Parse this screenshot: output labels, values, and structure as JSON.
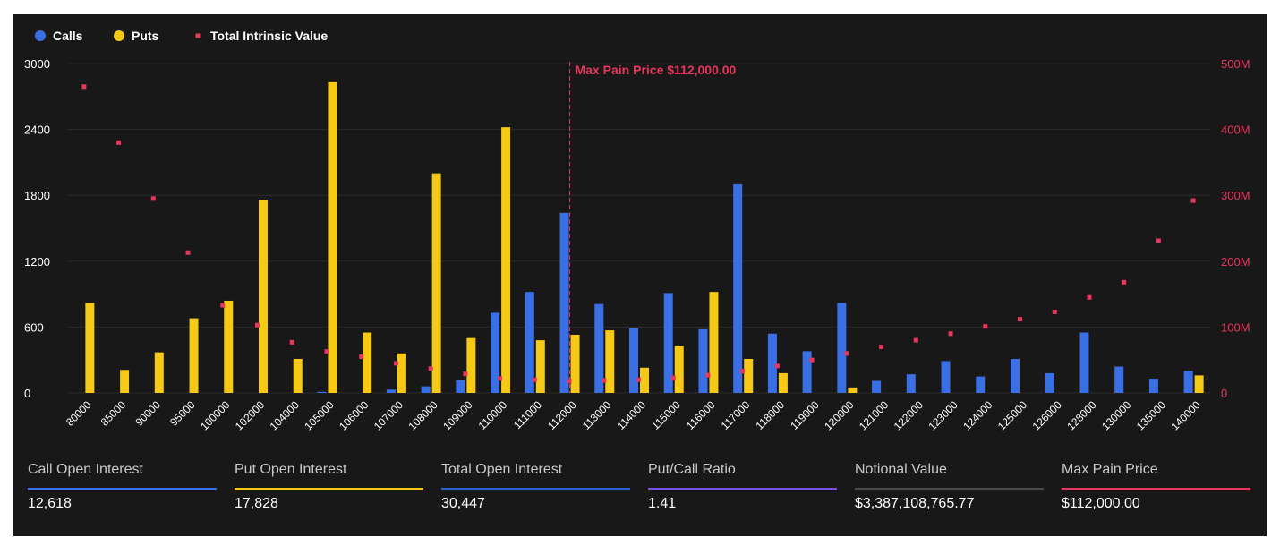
{
  "chart_data": {
    "type": "bar",
    "legend": {
      "placement": "top-left",
      "items": [
        {
          "label": "Calls",
          "color": "#3b6fe6",
          "marker": "circle"
        },
        {
          "label": "Puts",
          "color": "#f5c915",
          "marker": "circle"
        },
        {
          "label": "Total Intrinsic Value",
          "color": "#e8365d",
          "marker": "square"
        }
      ]
    },
    "categories": [
      "80000",
      "85000",
      "90000",
      "95000",
      "100000",
      "102000",
      "104000",
      "105000",
      "106000",
      "107000",
      "108000",
      "109000",
      "110000",
      "111000",
      "112000",
      "113000",
      "114000",
      "115000",
      "116000",
      "117000",
      "118000",
      "119000",
      "120000",
      "121000",
      "122000",
      "123000",
      "124000",
      "125000",
      "126000",
      "128000",
      "130000",
      "135000",
      "140000"
    ],
    "series": [
      {
        "name": "Calls",
        "axis": "left",
        "color": "#3b6fe6",
        "values": [
          0,
          0,
          0,
          0,
          0,
          0,
          0,
          10,
          0,
          30,
          60,
          120,
          730,
          920,
          1640,
          810,
          590,
          910,
          580,
          1900,
          540,
          380,
          820,
          110,
          170,
          290,
          150,
          310,
          180,
          550,
          240,
          130,
          200
        ]
      },
      {
        "name": "Puts",
        "axis": "left",
        "color": "#f5c915",
        "values": [
          820,
          210,
          370,
          680,
          840,
          1760,
          310,
          2830,
          550,
          360,
          2000,
          500,
          2420,
          480,
          530,
          570,
          230,
          430,
          920,
          310,
          180,
          0,
          50,
          0,
          0,
          0,
          0,
          0,
          0,
          0,
          0,
          0,
          160
        ]
      },
      {
        "name": "Total Intrinsic Value",
        "axis": "right",
        "type": "scatter",
        "color": "#e8365d",
        "values": [
          465000000,
          380000000,
          295000000,
          213000000,
          133000000,
          103000000,
          77000000,
          63000000,
          55000000,
          45000000,
          37000000,
          29000000,
          22000000,
          20000000,
          18000000,
          19000000,
          20000000,
          23000000,
          27000000,
          33000000,
          41000000,
          50000000,
          60000000,
          70000000,
          80000000,
          90000000,
          101000000,
          112000000,
          123000000,
          145000000,
          168000000,
          231000000,
          292000000
        ]
      }
    ],
    "y_left": {
      "range": [
        0,
        3000
      ],
      "ticks": [
        "0",
        "600",
        "1200",
        "1800",
        "2400",
        "3000"
      ]
    },
    "y_right": {
      "range": [
        0,
        500000000
      ],
      "ticks": [
        "0",
        "100M",
        "200M",
        "300M",
        "400M",
        "500M"
      ],
      "color": "#e8365d"
    },
    "gridlines": true,
    "annotation": {
      "category": "112000",
      "label": "Max Pain Price $112,000.00",
      "color": "#e8365d"
    }
  },
  "stats": [
    {
      "label": "Call Open Interest",
      "value": "12,618",
      "color": "#3b6fe6"
    },
    {
      "label": "Put Open Interest",
      "value": "17,828",
      "color": "#f5c915"
    },
    {
      "label": "Total Open Interest",
      "value": "30,447",
      "color": "#2f5fd0"
    },
    {
      "label": "Put/Call Ratio",
      "value": "1.41",
      "color": "#7b4fe0"
    },
    {
      "label": "Notional Value",
      "value": "$3,387,108,765.77",
      "color": "#4a4a4a"
    },
    {
      "label": "Max Pain Price",
      "value": "$112,000.00",
      "color": "#e8365d"
    }
  ]
}
